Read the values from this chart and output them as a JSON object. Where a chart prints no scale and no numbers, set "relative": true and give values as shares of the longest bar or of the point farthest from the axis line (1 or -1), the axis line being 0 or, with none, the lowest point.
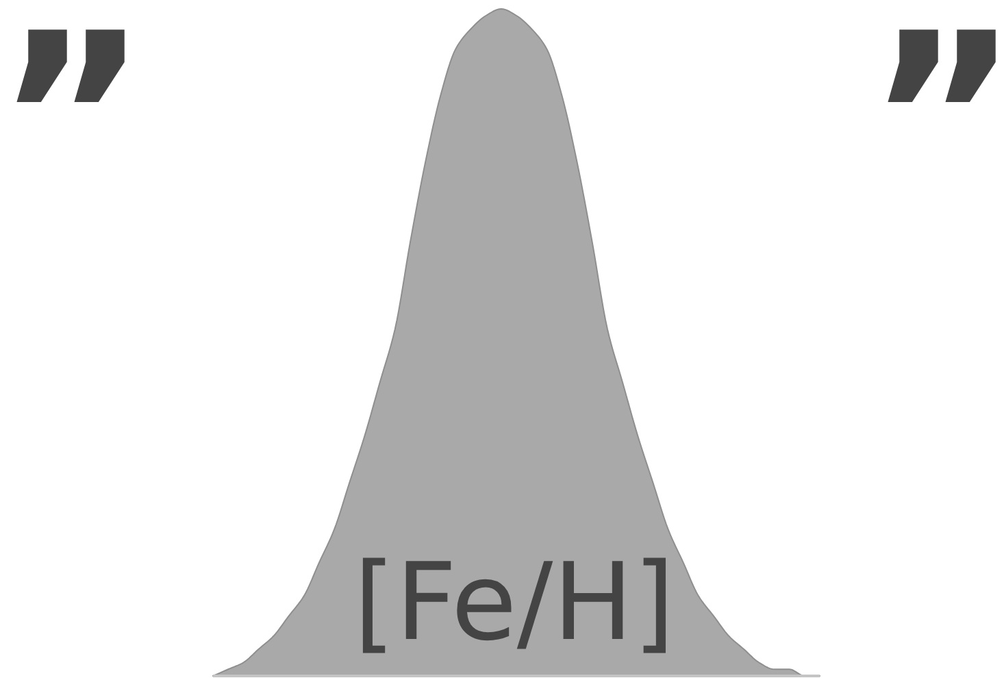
{
  "chart_data": {
    "type": "area",
    "relative": true,
    "xlabel": "[Fe/H]",
    "annotations": [
      "”",
      "”"
    ],
    "color": "#a9a9a9",
    "categories": [
      null,
      null,
      null,
      null,
      null,
      null,
      null,
      null,
      null,
      null,
      null,
      null,
      null,
      null,
      null,
      null,
      null,
      null,
      null,
      null,
      null,
      null,
      null,
      null,
      null,
      null,
      null,
      null,
      null,
      null,
      null,
      null,
      null,
      null,
      null,
      null,
      null,
      null,
      null,
      null,
      null
    ],
    "values": [
      0.0,
      0.01,
      0.02,
      0.04,
      0.06,
      0.09,
      0.12,
      0.17,
      0.22,
      0.29,
      0.36,
      0.44,
      0.52,
      0.65,
      0.77,
      0.87,
      0.94,
      0.97,
      0.99,
      1.0,
      0.99,
      0.97,
      0.94,
      0.87,
      0.77,
      0.65,
      0.52,
      0.44,
      0.36,
      0.29,
      0.22,
      0.17,
      0.12,
      0.09,
      0.06,
      0.04,
      0.02,
      0.01,
      0.01,
      0.0,
      0.0
    ]
  }
}
